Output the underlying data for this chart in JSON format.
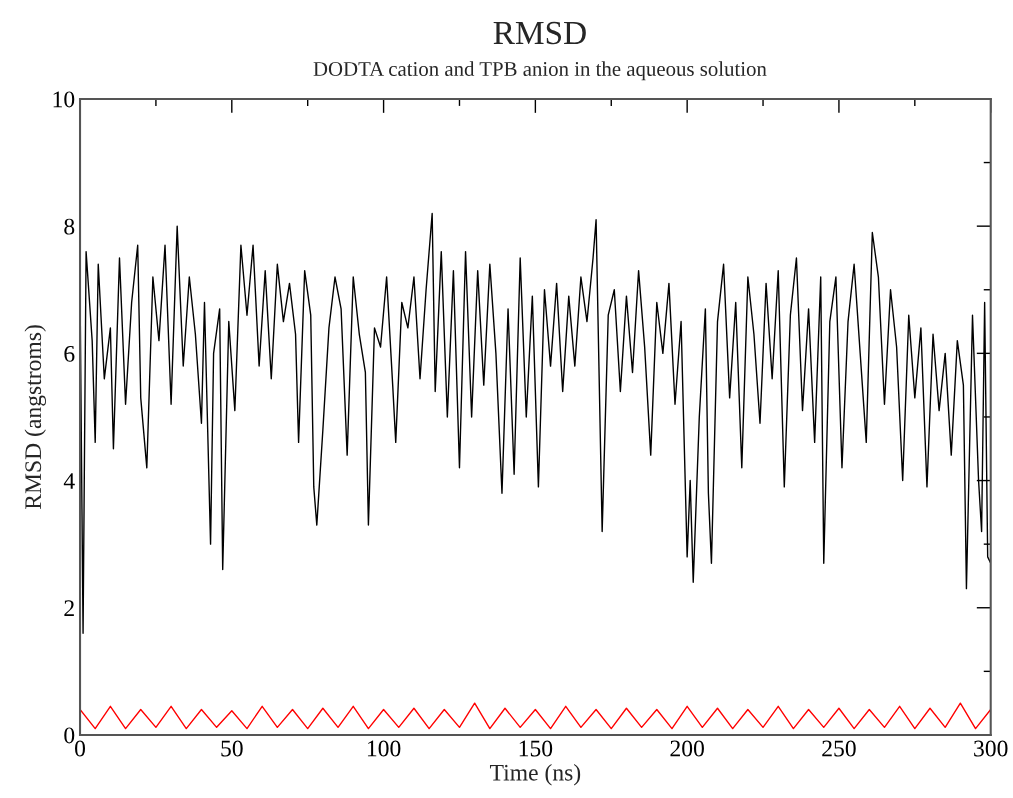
{
  "chart_data": {
    "type": "line",
    "title": "RMSD",
    "subtitle": "DODTA cation and TPB anion in the aqueous solution",
    "xlabel": "Time (ns)",
    "ylabel": "RMSD (angstroms)",
    "xlim": [
      0,
      300
    ],
    "ylim": [
      0,
      10
    ],
    "xticks": [
      0,
      50,
      100,
      150,
      200,
      250,
      300
    ],
    "yticks": [
      0,
      2,
      4,
      6,
      8,
      10
    ],
    "grid": false,
    "legend": false,
    "marker": "none",
    "line_style": "solid",
    "series": [
      {
        "color": "#000000",
        "x": [
          0,
          1,
          2,
          4,
          5,
          6,
          8,
          10,
          11,
          13,
          15,
          17,
          19,
          20,
          22,
          24,
          26,
          28,
          30,
          32,
          34,
          36,
          38,
          40,
          41,
          43,
          44,
          46,
          47,
          49,
          51,
          53,
          55,
          57,
          59,
          61,
          63,
          65,
          67,
          69,
          71,
          72,
          74,
          76,
          77,
          78,
          80,
          82,
          84,
          86,
          88,
          90,
          92,
          94,
          95,
          97,
          99,
          101,
          103,
          104,
          106,
          108,
          110,
          112,
          114,
          116,
          117,
          119,
          121,
          123,
          125,
          127,
          129,
          131,
          133,
          135,
          137,
          139,
          141,
          143,
          145,
          147,
          149,
          151,
          153,
          155,
          157,
          159,
          161,
          163,
          165,
          167,
          169,
          170,
          172,
          174,
          176,
          178,
          180,
          182,
          184,
          186,
          188,
          190,
          192,
          194,
          196,
          198,
          200,
          201,
          202,
          204,
          206,
          207,
          208,
          210,
          212,
          214,
          216,
          218,
          220,
          222,
          224,
          226,
          228,
          230,
          232,
          234,
          236,
          238,
          240,
          242,
          244,
          245,
          247,
          249,
          251,
          253,
          255,
          257,
          259,
          261,
          263,
          265,
          267,
          269,
          271,
          273,
          275,
          277,
          279,
          281,
          283,
          285,
          287,
          289,
          291,
          292,
          294,
          296,
          297,
          298,
          299,
          300
        ],
        "values": [
          7.0,
          1.6,
          7.6,
          6.2,
          4.6,
          7.4,
          5.6,
          6.4,
          4.5,
          7.5,
          5.2,
          6.8,
          7.7,
          5.3,
          4.2,
          7.2,
          6.2,
          7.7,
          5.2,
          8.0,
          5.8,
          7.2,
          6.3,
          4.9,
          6.8,
          3.0,
          6.0,
          6.7,
          2.6,
          6.5,
          5.1,
          7.7,
          6.6,
          7.7,
          5.8,
          7.3,
          5.6,
          7.4,
          6.5,
          7.1,
          6.3,
          4.6,
          7.3,
          6.6,
          3.9,
          3.3,
          4.8,
          6.4,
          7.2,
          6.7,
          4.4,
          7.2,
          6.3,
          5.7,
          3.3,
          6.4,
          6.1,
          7.2,
          5.5,
          4.6,
          6.8,
          6.4,
          7.2,
          5.6,
          7.0,
          8.2,
          5.4,
          7.6,
          5.0,
          7.3,
          4.2,
          7.6,
          5.0,
          7.3,
          5.5,
          7.4,
          6.0,
          3.8,
          6.7,
          4.1,
          7.5,
          5.0,
          6.9,
          3.9,
          7.0,
          5.8,
          7.1,
          5.4,
          6.9,
          5.8,
          7.2,
          6.5,
          7.5,
          8.1,
          3.2,
          6.6,
          7.0,
          5.4,
          6.9,
          5.7,
          7.3,
          6.1,
          4.4,
          6.8,
          6.0,
          7.1,
          5.2,
          6.5,
          2.8,
          4.0,
          2.4,
          5.0,
          6.7,
          3.8,
          2.7,
          6.5,
          7.4,
          5.3,
          6.8,
          4.2,
          7.2,
          6.3,
          4.9,
          7.1,
          5.6,
          7.3,
          3.9,
          6.6,
          7.5,
          5.1,
          6.7,
          4.6,
          7.2,
          2.7,
          6.5,
          7.2,
          4.2,
          6.5,
          7.4,
          6.0,
          4.6,
          7.9,
          7.2,
          5.2,
          7.0,
          6.1,
          4.0,
          6.6,
          5.3,
          6.4,
          3.9,
          6.3,
          5.1,
          6.0,
          4.4,
          6.2,
          5.5,
          2.3,
          6.6,
          4.0,
          3.2,
          6.8,
          2.8,
          2.7
        ]
      },
      {
        "color": "#ff0000",
        "x": [
          0,
          5,
          10,
          15,
          20,
          25,
          30,
          35,
          40,
          45,
          50,
          55,
          60,
          65,
          70,
          75,
          80,
          85,
          90,
          95,
          100,
          105,
          110,
          115,
          120,
          125,
          130,
          135,
          140,
          145,
          150,
          155,
          160,
          165,
          170,
          175,
          180,
          185,
          190,
          195,
          200,
          205,
          210,
          215,
          220,
          225,
          230,
          235,
          240,
          245,
          250,
          255,
          260,
          265,
          270,
          275,
          280,
          285,
          290,
          295,
          300
        ],
        "values": [
          0.4,
          0.1,
          0.45,
          0.1,
          0.4,
          0.12,
          0.45,
          0.1,
          0.4,
          0.12,
          0.38,
          0.1,
          0.45,
          0.12,
          0.4,
          0.1,
          0.42,
          0.12,
          0.45,
          0.1,
          0.4,
          0.12,
          0.42,
          0.1,
          0.4,
          0.12,
          0.5,
          0.1,
          0.42,
          0.12,
          0.4,
          0.1,
          0.45,
          0.12,
          0.4,
          0.1,
          0.42,
          0.12,
          0.4,
          0.1,
          0.45,
          0.12,
          0.42,
          0.1,
          0.4,
          0.12,
          0.45,
          0.1,
          0.4,
          0.12,
          0.42,
          0.1,
          0.4,
          0.12,
          0.45,
          0.1,
          0.42,
          0.12,
          0.5,
          0.1,
          0.4
        ]
      }
    ]
  }
}
